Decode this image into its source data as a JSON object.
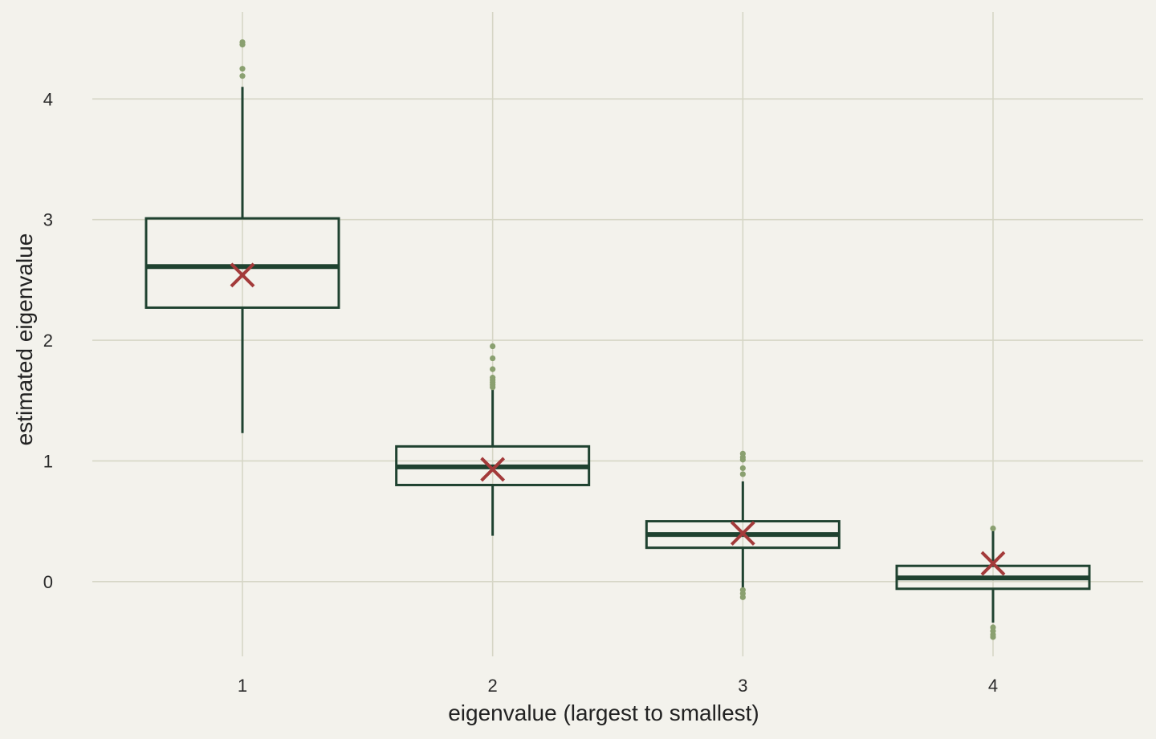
{
  "chart_data": {
    "type": "box",
    "xlabel": "eigenvalue (largest to smallest)",
    "ylabel": "estimated eigenvalue",
    "categories": [
      "1",
      "2",
      "3",
      "4"
    ],
    "x_ticks": [
      "1",
      "2",
      "3",
      "4"
    ],
    "y_ticks": [
      0,
      1,
      2,
      3,
      4
    ],
    "ylim": [
      -0.62,
      4.72
    ],
    "grid": true,
    "colors": {
      "background": "#f3f2ec",
      "grid": "#d6d6c6",
      "box": "#1f4230",
      "outlier": "#8aa070",
      "mean_marker": "#a33a3a"
    },
    "boxes": [
      {
        "category": "1",
        "whisker_low": 1.23,
        "q1": 2.27,
        "median": 2.61,
        "q3": 3.01,
        "whisker_high": 4.1,
        "mean": 2.54,
        "outliers": [
          4.45,
          4.47,
          4.25,
          4.19
        ]
      },
      {
        "category": "2",
        "whisker_low": 0.38,
        "q1": 0.8,
        "median": 0.95,
        "q3": 1.12,
        "whisker_high": 1.6,
        "mean": 0.93,
        "outliers": [
          1.95,
          1.85,
          1.76,
          1.69,
          1.67,
          1.65,
          1.63,
          1.61
        ]
      },
      {
        "category": "3",
        "whisker_low": -0.05,
        "q1": 0.28,
        "median": 0.39,
        "q3": 0.5,
        "whisker_high": 0.83,
        "mean": 0.4,
        "outliers": [
          1.06,
          1.03,
          1.01,
          0.94,
          0.89,
          -0.07,
          -0.1,
          -0.13
        ]
      },
      {
        "category": "4",
        "whisker_low": -0.34,
        "q1": -0.06,
        "median": 0.03,
        "q3": 0.13,
        "whisker_high": 0.42,
        "mean": 0.15,
        "outliers": [
          0.44,
          -0.38,
          -0.41,
          -0.44,
          -0.46
        ]
      }
    ]
  }
}
